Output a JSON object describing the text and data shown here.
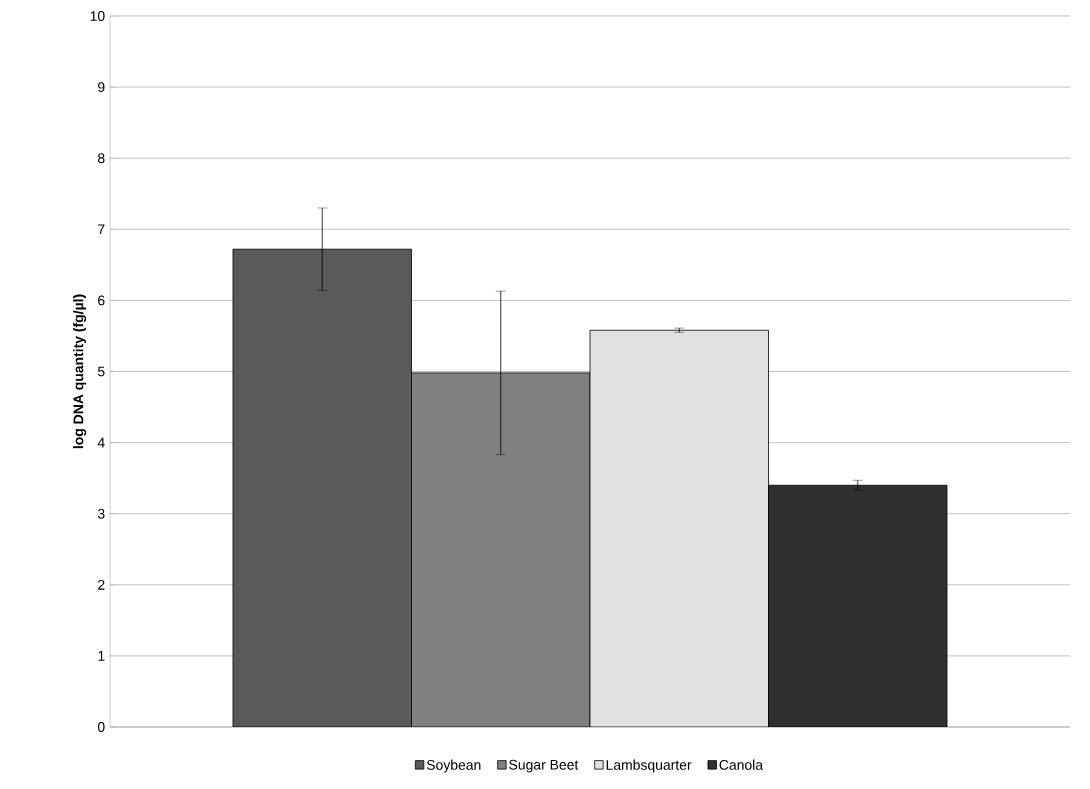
{
  "chart_data": {
    "type": "bar",
    "ylabel": "log DNA quantity (fg/µl)",
    "categories": [
      null
    ],
    "series": [
      {
        "name": "Soybean",
        "color": "#595959",
        "values": [
          6.72
        ],
        "errors": [
          0.58
        ]
      },
      {
        "name": "Sugar Beet",
        "color": "#808080",
        "values": [
          4.98
        ],
        "errors": [
          1.15
        ]
      },
      {
        "name": "Lambsquarter",
        "color": "#e0e0e0",
        "values": [
          5.58
        ],
        "errors": [
          0.03
        ]
      },
      {
        "name": "Canola",
        "color": "#303030",
        "values": [
          3.4
        ],
        "errors": [
          0.07
        ]
      }
    ],
    "ylim": [
      0,
      10
    ],
    "yticks": [
      0,
      1,
      2,
      3,
      4,
      5,
      6,
      7,
      8,
      9,
      10
    ],
    "grid": "y",
    "legend": "bottom"
  }
}
